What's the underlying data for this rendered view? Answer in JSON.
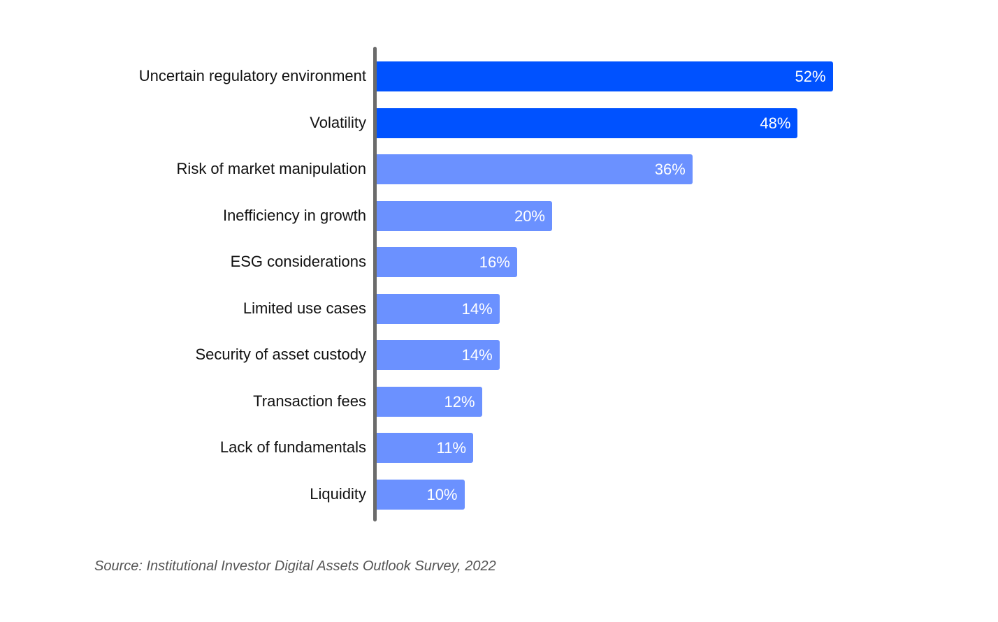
{
  "chart_data": {
    "type": "bar",
    "orientation": "horizontal",
    "categories": [
      "Uncertain regulatory environment",
      "Volatility",
      "Risk of market manipulation",
      "Inefficiency in growth",
      "ESG considerations",
      "Limited use cases",
      "Security of asset custody",
      "Transaction fees",
      "Lack of fundamentals",
      "Liquidity"
    ],
    "values": [
      52,
      48,
      36,
      20,
      16,
      14,
      14,
      12,
      11,
      10
    ],
    "value_labels": [
      "52%",
      "48%",
      "36%",
      "20%",
      "16%",
      "14%",
      "14%",
      "12%",
      "11%",
      "10%"
    ],
    "unit": "%",
    "highlighted": [
      true,
      true,
      false,
      false,
      false,
      false,
      false,
      false,
      false,
      false
    ],
    "colors": {
      "highlight": "#0052FF",
      "default": "#6B91FF",
      "axis": "#6B6B6B"
    },
    "xlim": [
      0,
      100
    ],
    "grid": false,
    "title": "",
    "xlabel": "",
    "ylabel": ""
  },
  "source": "Source: Institutional Investor Digital Assets Outlook Survey, 2022"
}
